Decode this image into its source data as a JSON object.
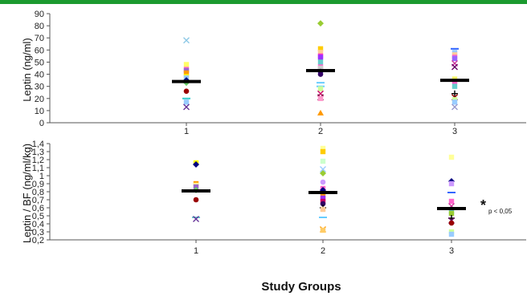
{
  "colors": {
    "top_bar": "#1b9a2f",
    "mean_bar": "#000000",
    "axis": "#555555"
  },
  "xlabel": "Study Groups",
  "chart_data": [
    {
      "type": "scatter",
      "ylabel": "Leptin (ng/ml)",
      "ylim": [
        0,
        90
      ],
      "yticks": [
        0,
        10,
        20,
        30,
        40,
        50,
        60,
        70,
        80,
        90
      ],
      "ytick_labels": [
        "0",
        "10",
        "20",
        "30",
        "40",
        "50",
        "60",
        "70",
        "80",
        "90"
      ],
      "categories": [
        "1",
        "2",
        "3"
      ],
      "means": [
        34,
        43,
        35
      ],
      "points": [
        {
          "g": 1,
          "y": 68,
          "c": "#8ec9e6",
          "m": "x"
        },
        {
          "g": 1,
          "y": 48,
          "c": "#ffff66",
          "m": "sq"
        },
        {
          "g": 1,
          "y": 44,
          "c": "#ff66cc",
          "m": "sq"
        },
        {
          "g": 1,
          "y": 43,
          "c": "#9966cc",
          "m": "sq"
        },
        {
          "g": 1,
          "y": 41,
          "c": "#ff9900",
          "m": "sq"
        },
        {
          "g": 1,
          "y": 38,
          "c": "#ffff00",
          "m": "sq"
        },
        {
          "g": 1,
          "y": 37,
          "c": "#99ccff",
          "m": "sq"
        },
        {
          "g": 1,
          "y": 35,
          "c": "#000080",
          "m": "d"
        },
        {
          "g": 1,
          "y": 33,
          "c": "#66cc66",
          "m": "d"
        },
        {
          "g": 1,
          "y": 26,
          "c": "#990000",
          "m": "o"
        },
        {
          "g": 1,
          "y": 20,
          "c": "#33cccc",
          "m": "-"
        },
        {
          "g": 1,
          "y": 17,
          "c": "#99ccff",
          "m": "sq"
        },
        {
          "g": 1,
          "y": 13,
          "c": "#663399",
          "m": "x"
        },
        {
          "g": 2,
          "y": 82,
          "c": "#99cc33",
          "m": "d"
        },
        {
          "g": 2,
          "y": 61,
          "c": "#ffcc00",
          "m": "sq"
        },
        {
          "g": 2,
          "y": 58,
          "c": "#ffcc99",
          "m": "sq"
        },
        {
          "g": 2,
          "y": 55,
          "c": "#ff33cc",
          "m": "sq"
        },
        {
          "g": 2,
          "y": 54,
          "c": "#9933ff",
          "m": "sq"
        },
        {
          "g": 2,
          "y": 50,
          "c": "#66cccc",
          "m": "sq"
        },
        {
          "g": 2,
          "y": 46,
          "c": "#ff66cc",
          "m": "sq"
        },
        {
          "g": 2,
          "y": 45,
          "c": "#cccccc",
          "m": "sq"
        },
        {
          "g": 2,
          "y": 42,
          "c": "#000080",
          "m": "d"
        },
        {
          "g": 2,
          "y": 40,
          "c": "#330066",
          "m": "o"
        },
        {
          "g": 2,
          "y": 33,
          "c": "#66ccff",
          "m": "-"
        },
        {
          "g": 2,
          "y": 30,
          "c": "#66ccff",
          "m": "-"
        },
        {
          "g": 2,
          "y": 28,
          "c": "#ccff99",
          "m": "sq"
        },
        {
          "g": 2,
          "y": 24,
          "c": "#cc0066",
          "m": "x"
        },
        {
          "g": 2,
          "y": 21,
          "c": "#660033",
          "m": "x"
        },
        {
          "g": 2,
          "y": 20,
          "c": "#ff99cc",
          "m": "sq"
        },
        {
          "g": 2,
          "y": 8,
          "c": "#ff9900",
          "m": "t"
        },
        {
          "g": 3,
          "y": 61,
          "c": "#3366ff",
          "m": "-"
        },
        {
          "g": 3,
          "y": 58,
          "c": "#99ccff",
          "m": "sq"
        },
        {
          "g": 3,
          "y": 56,
          "c": "#ffcc99",
          "m": "sq"
        },
        {
          "g": 3,
          "y": 54,
          "c": "#ff66cc",
          "m": "sq"
        },
        {
          "g": 3,
          "y": 53,
          "c": "#9966ff",
          "m": "sq"
        },
        {
          "g": 3,
          "y": 49,
          "c": "#cc3399",
          "m": "x"
        },
        {
          "g": 3,
          "y": 46,
          "c": "#660066",
          "m": "x"
        },
        {
          "g": 3,
          "y": 36,
          "c": "#ffff66",
          "m": "sq"
        },
        {
          "g": 3,
          "y": 34,
          "c": "#ff66cc",
          "m": "sq"
        },
        {
          "g": 3,
          "y": 30,
          "c": "#66cccc",
          "m": "sq"
        },
        {
          "g": 3,
          "y": 24,
          "c": "#000000",
          "m": "+"
        },
        {
          "g": 3,
          "y": 21,
          "c": "#990000",
          "m": "x"
        },
        {
          "g": 3,
          "y": 19,
          "c": "#ccff99",
          "m": "sq"
        },
        {
          "g": 3,
          "y": 17,
          "c": "#99ccff",
          "m": "sq"
        },
        {
          "g": 3,
          "y": 13,
          "c": "#9999cc",
          "m": "x"
        }
      ]
    },
    {
      "type": "scatter",
      "ylabel": "Leptin / BF (ng/ml/kg)",
      "ylim": [
        0.2,
        1.4
      ],
      "yticks": [
        0.2,
        0.3,
        0.4,
        0.5,
        0.6,
        0.7,
        0.8,
        0.9,
        1.0,
        1.1,
        1.2,
        1.3,
        1.4
      ],
      "ytick_labels": [
        "0,2",
        "0,3",
        "0,4",
        "0,5",
        "0,6",
        "0,7",
        "0,8",
        "0,9",
        "1",
        "1,1",
        "1,2",
        "1,3",
        "1,4"
      ],
      "categories": [
        "1",
        "2",
        "3"
      ],
      "means": [
        0.81,
        0.79,
        0.59
      ],
      "annotation": {
        "star": "*",
        "text": "p < 0,05"
      },
      "points": [
        {
          "g": 1,
          "y": 1.16,
          "c": "#ffff00",
          "m": "sq"
        },
        {
          "g": 1,
          "y": 1.14,
          "c": "#000080",
          "m": "d"
        },
        {
          "g": 1,
          "y": 0.9,
          "c": "#ff9900",
          "m": "sq"
        },
        {
          "g": 1,
          "y": 0.88,
          "c": "#ffff99",
          "m": "sq"
        },
        {
          "g": 1,
          "y": 0.86,
          "c": "#9966cc",
          "m": "sq"
        },
        {
          "g": 1,
          "y": 0.82,
          "c": "#66cc66",
          "m": "d"
        },
        {
          "g": 1,
          "y": 0.7,
          "c": "#990000",
          "m": "o"
        },
        {
          "g": 1,
          "y": 0.48,
          "c": "#66cccc",
          "m": "-"
        },
        {
          "g": 1,
          "y": 0.46,
          "c": "#663399",
          "m": "x"
        },
        {
          "g": 2,
          "y": 1.34,
          "c": "#ffff99",
          "m": "sq"
        },
        {
          "g": 2,
          "y": 1.3,
          "c": "#ffcc00",
          "m": "sq"
        },
        {
          "g": 2,
          "y": 1.18,
          "c": "#ccffcc",
          "m": "sq"
        },
        {
          "g": 2,
          "y": 1.08,
          "c": "#99ccff",
          "m": "x"
        },
        {
          "g": 2,
          "y": 1.03,
          "c": "#99cc33",
          "m": "d"
        },
        {
          "g": 2,
          "y": 0.92,
          "c": "#cc99ff",
          "m": "o"
        },
        {
          "g": 2,
          "y": 0.84,
          "c": "#ff66cc",
          "m": "sq"
        },
        {
          "g": 2,
          "y": 0.82,
          "c": "#000080",
          "m": "d"
        },
        {
          "g": 2,
          "y": 0.75,
          "c": "#ff9900",
          "m": "sq"
        },
        {
          "g": 2,
          "y": 0.72,
          "c": "#9933ff",
          "m": "sq"
        },
        {
          "g": 2,
          "y": 0.68,
          "c": "#cc0066",
          "m": "sq"
        },
        {
          "g": 2,
          "y": 0.65,
          "c": "#330066",
          "m": "o"
        },
        {
          "g": 2,
          "y": 0.6,
          "c": "#000000",
          "m": "+"
        },
        {
          "g": 2,
          "y": 0.58,
          "c": "#ffcc99",
          "m": "sq"
        },
        {
          "g": 2,
          "y": 0.48,
          "c": "#66ccff",
          "m": "-"
        },
        {
          "g": 2,
          "y": 0.33,
          "c": "#ff9900",
          "m": "x"
        },
        {
          "g": 2,
          "y": 0.32,
          "c": "#ffcc66",
          "m": "sq"
        },
        {
          "g": 3,
          "y": 1.23,
          "c": "#ffff99",
          "m": "sq"
        },
        {
          "g": 3,
          "y": 0.93,
          "c": "#000080",
          "m": "d"
        },
        {
          "g": 3,
          "y": 0.9,
          "c": "#cc99ff",
          "m": "sq"
        },
        {
          "g": 3,
          "y": 0.79,
          "c": "#3366ff",
          "m": "-"
        },
        {
          "g": 3,
          "y": 0.68,
          "c": "#ff66cc",
          "m": "sq"
        },
        {
          "g": 3,
          "y": 0.62,
          "c": "#cc3399",
          "m": "x"
        },
        {
          "g": 3,
          "y": 0.55,
          "c": "#66cccc",
          "m": "sq"
        },
        {
          "g": 3,
          "y": 0.53,
          "c": "#99cc33",
          "m": "sq"
        },
        {
          "g": 3,
          "y": 0.47,
          "c": "#000000",
          "m": "+"
        },
        {
          "g": 3,
          "y": 0.44,
          "c": "#660066",
          "m": "x"
        },
        {
          "g": 3,
          "y": 0.41,
          "c": "#990000",
          "m": "o"
        },
        {
          "g": 3,
          "y": 0.3,
          "c": "#ccff99",
          "m": "sq"
        },
        {
          "g": 3,
          "y": 0.27,
          "c": "#99ccff",
          "m": "sq"
        }
      ]
    }
  ]
}
